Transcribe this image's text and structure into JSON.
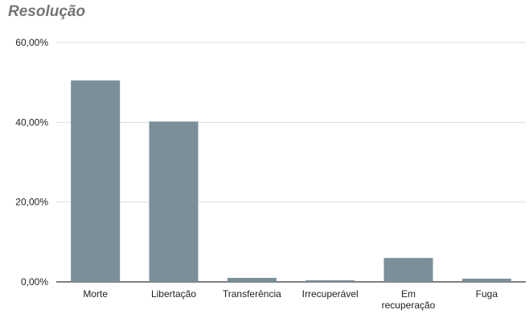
{
  "chart_data": {
    "type": "bar",
    "title": "Resolução",
    "xlabel": "",
    "ylabel": "",
    "categories": [
      [
        "Morte"
      ],
      [
        "Libertação"
      ],
      [
        "Transferência"
      ],
      [
        "Irrecuperável"
      ],
      [
        "Em",
        "recuperação"
      ],
      [
        "Fuga"
      ]
    ],
    "values": [
      50.5,
      40.2,
      1.0,
      0.4,
      6.0,
      0.8
    ],
    "ylim": [
      0,
      60
    ],
    "yticks": [
      "0,00%",
      "20,00%",
      "40,00%",
      "60,00%"
    ],
    "ytick_values": [
      0,
      20,
      40,
      60
    ],
    "grid": true,
    "bar_color": "#7a8f9a"
  }
}
